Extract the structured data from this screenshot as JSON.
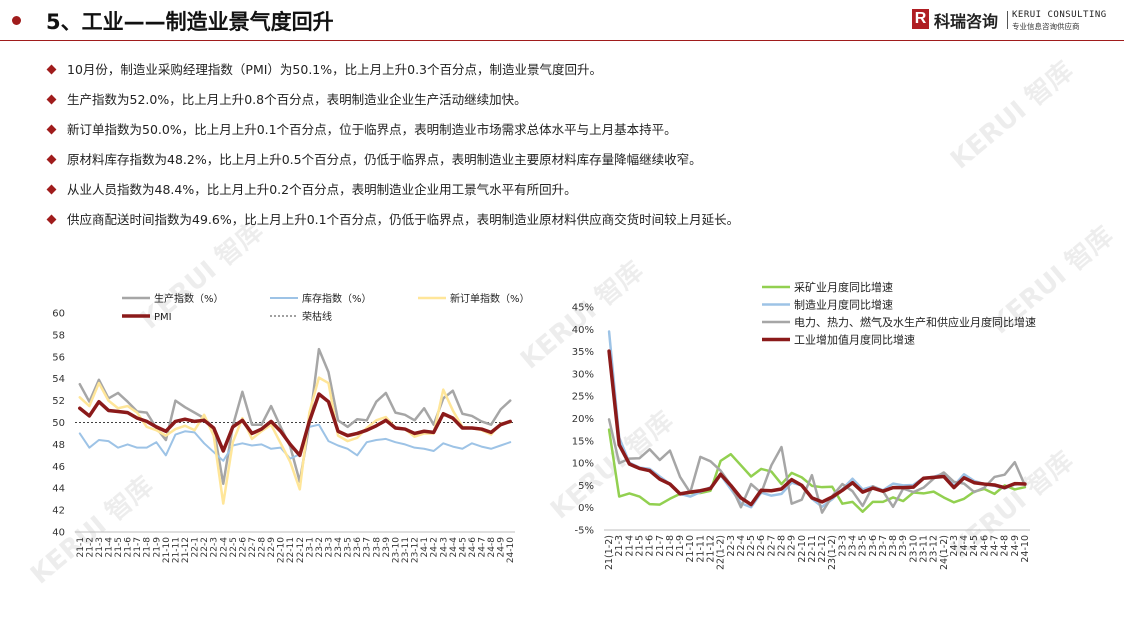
{
  "header": {
    "title": "5、工业——制造业景气度回升",
    "logo": "科瑞咨询",
    "logo_en": "KERUI CONSULTING",
    "logo_sub": "专业信息咨询供应商"
  },
  "watermark": "KERUI 智库",
  "bullets": [
    "10月份，制造业采购经理指数（PMI）为50.1%，比上月上升0.3个百分点，制造业景气度回升。",
    "生产指数为52.0%，比上月上升0.8个百分点，表明制造业企业生产活动继续加快。",
    "新订单指数为50.0%，比上月上升0.1个百分点，位于临界点，表明制造业市场需求总体水平与上月基本持平。",
    "原材料库存指数为48.2%，比上月上升0.5个百分点，仍低于临界点，表明制造业主要原材料库存量降幅继续收窄。",
    "从业人员指数为48.4%，比上月上升0.2个百分点，表明制造业企业用工景气水平有所回升。",
    "供应商配送时间指数为49.6%，比上月上升0.1个百分点，仍低于临界点，表明制造业原材料供应商交货时间较上月延长。"
  ],
  "chart_data": [
    {
      "type": "line",
      "categories": [
        "21-1",
        "21-2",
        "21-3",
        "21-4",
        "21-5",
        "21-6",
        "21-7",
        "21-8",
        "21-9",
        "21-10",
        "21-11",
        "21-12",
        "22-1",
        "22-2",
        "22-3",
        "22-4",
        "22-5",
        "22-6",
        "22-7",
        "22-8",
        "22-9",
        "22-10",
        "22-11",
        "22-12",
        "23-1",
        "23-2",
        "23-3",
        "23-4",
        "23-5",
        "23-6",
        "23-7",
        "23-8",
        "23-9",
        "23-10",
        "23-11",
        "23-12",
        "24-1",
        "24-2",
        "24-3",
        "24-4",
        "24-5",
        "24-6",
        "24-7",
        "24-8",
        "24-9",
        "24-10"
      ],
      "series": [
        {
          "name": "生产指数（%）",
          "color": "#a6a6a6",
          "line_width": 2.5,
          "values": [
            53.5,
            51.9,
            53.9,
            52.2,
            52.7,
            51.9,
            51.0,
            50.9,
            49.5,
            48.4,
            52.0,
            51.4,
            50.9,
            50.4,
            49.5,
            44.4,
            49.7,
            52.8,
            49.8,
            49.8,
            51.5,
            49.6,
            47.8,
            44.6,
            49.8,
            56.7,
            54.6,
            50.2,
            49.6,
            50.3,
            50.2,
            51.9,
            52.7,
            50.9,
            50.7,
            50.2,
            51.3,
            49.8,
            52.2,
            52.9,
            50.8,
            50.6,
            50.1,
            49.8,
            51.2,
            52.0
          ]
        },
        {
          "name": "库存指数（%）",
          "color": "#9dc3e6",
          "line_width": 2,
          "values": [
            49.0,
            47.7,
            48.4,
            48.3,
            47.7,
            48.0,
            47.7,
            47.7,
            48.2,
            47.0,
            48.9,
            49.2,
            49.1,
            48.1,
            47.3,
            46.5,
            47.9,
            48.1,
            47.9,
            48.0,
            47.6,
            47.7,
            46.7,
            47.1,
            49.6,
            49.8,
            48.3,
            47.9,
            47.6,
            47.0,
            48.2,
            48.4,
            48.5,
            48.2,
            48.0,
            47.7,
            47.6,
            47.4,
            48.1,
            47.8,
            47.6,
            48.1,
            47.8,
            47.6,
            47.9,
            48.2
          ]
        },
        {
          "name": "新订单指数（%）",
          "color": "#ffe699",
          "line_width": 2.5,
          "values": [
            52.3,
            51.5,
            53.6,
            52.0,
            51.3,
            51.5,
            50.9,
            49.6,
            49.3,
            48.8,
            49.4,
            49.7,
            49.3,
            50.7,
            48.8,
            42.6,
            48.2,
            50.4,
            48.5,
            49.2,
            49.8,
            48.1,
            46.4,
            43.9,
            50.9,
            54.1,
            53.6,
            48.8,
            48.3,
            48.6,
            49.5,
            50.2,
            50.5,
            49.5,
            49.4,
            48.7,
            49.0,
            49.0,
            53.0,
            51.1,
            49.6,
            49.5,
            49.3,
            48.9,
            49.9,
            50.0
          ]
        },
        {
          "name": "PMI",
          "color": "#8b1a1a",
          "line_width": 3.5,
          "values": [
            51.3,
            50.6,
            51.9,
            51.1,
            51.0,
            50.9,
            50.4,
            50.1,
            49.6,
            49.2,
            50.1,
            50.3,
            50.1,
            50.2,
            49.5,
            47.4,
            49.6,
            50.2,
            49.0,
            49.4,
            50.1,
            49.2,
            48.0,
            47.0,
            50.1,
            52.6,
            51.9,
            49.2,
            48.8,
            49.0,
            49.3,
            49.7,
            50.2,
            49.5,
            49.4,
            49.0,
            49.2,
            49.1,
            50.8,
            50.4,
            49.5,
            49.5,
            49.4,
            49.1,
            49.8,
            50.1
          ]
        }
      ],
      "reference_lines": [
        {
          "name": "荣枯线",
          "value": 50,
          "color": "#404040",
          "dashed": true
        }
      ],
      "ylim": [
        40,
        60
      ],
      "yticks": [
        40,
        42,
        44,
        46,
        48,
        50,
        52,
        54,
        56,
        58,
        60
      ],
      "grid": false,
      "legend": "top"
    },
    {
      "type": "line",
      "categories": [
        "21(1-2)",
        "21-3",
        "21-4",
        "21-5",
        "21-6",
        "21-7",
        "21-8",
        "21-9",
        "21-10",
        "21-11",
        "21-12",
        "22(1-2)",
        "22-3",
        "22-4",
        "22-5",
        "22-6",
        "22-7",
        "22-8",
        "22-9",
        "22-10",
        "22-11",
        "22-12",
        "23(1-2)",
        "23-3",
        "23-4",
        "23-5",
        "23-6",
        "23-7",
        "23-8",
        "23-9",
        "23-10",
        "23-11",
        "23-12",
        "24(1-2)",
        "24-3",
        "24-4",
        "24-5",
        "24-6",
        "24-7",
        "24-8",
        "24-9",
        "24-10"
      ],
      "series": [
        {
          "name": "采矿业月度同比增速",
          "color": "#92d050",
          "line_width": 2.5,
          "values": [
            17.5,
            2.5,
            3.2,
            2.5,
            0.8,
            0.7,
            2.0,
            3.1,
            3.3,
            3.3,
            3.8,
            10.5,
            12.0,
            9.5,
            7.0,
            8.7,
            8.1,
            5.3,
            7.8,
            6.8,
            4.9,
            4.6,
            4.7,
            0.9,
            1.3,
            -0.9,
            1.3,
            1.3,
            2.3,
            1.5,
            3.4,
            3.2,
            3.6,
            2.3,
            1.2,
            2.0,
            3.6,
            4.2,
            3.1,
            5.0,
            4.1,
            4.6
          ]
        },
        {
          "name": "制造业月度同比增速",
          "color": "#9dc3e6",
          "line_width": 2.5,
          "values": [
            39.5,
            15.7,
            10.1,
            9.0,
            8.7,
            7.0,
            5.3,
            3.1,
            2.5,
            3.5,
            4.6,
            7.3,
            4.2,
            1.0,
            0.1,
            3.4,
            2.7,
            3.1,
            5.6,
            5.0,
            2.0,
            0.2,
            1.9,
            4.2,
            6.5,
            4.1,
            4.8,
            3.9,
            5.4,
            5.0,
            5.1,
            6.7,
            6.9,
            7.7,
            4.9,
            7.5,
            6.0,
            5.3,
            4.9,
            4.3,
            5.2,
            5.4
          ]
        },
        {
          "name": "电力、热力、燃气及水生产和供应业月度同比增速",
          "color": "#a6a6a6",
          "line_width": 2.5,
          "values": [
            19.8,
            10.0,
            11.0,
            11.1,
            13.1,
            10.7,
            12.8,
            6.9,
            3.4,
            11.4,
            10.4,
            8.3,
            5.1,
            0.1,
            5.3,
            3.3,
            9.5,
            13.6,
            0.9,
            1.8,
            7.3,
            -1.1,
            2.6,
            5.3,
            3.7,
            0.4,
            4.8,
            3.7,
            0.2,
            4.3,
            3.5,
            4.5,
            6.5,
            7.9,
            5.8,
            5.4,
            3.5,
            4.5,
            6.9,
            7.4,
            10.2,
            5.0
          ]
        },
        {
          "name": "工业增加值月度同比增速",
          "color": "#8b1a1a",
          "line_width": 3.5,
          "values": [
            35.1,
            14.1,
            9.8,
            8.8,
            8.3,
            6.4,
            5.3,
            3.1,
            3.5,
            3.8,
            4.3,
            7.5,
            5.0,
            2.2,
            0.7,
            3.9,
            3.8,
            4.2,
            6.3,
            5.0,
            2.2,
            1.3,
            2.4,
            3.9,
            5.6,
            3.5,
            4.4,
            3.7,
            4.5,
            4.5,
            4.6,
            6.6,
            6.8,
            7.0,
            4.5,
            6.7,
            5.6,
            5.3,
            5.1,
            4.5,
            5.4,
            5.3
          ]
        }
      ],
      "ylim": [
        -5,
        45
      ],
      "yticks": [
        {
          "value": -5,
          "label": "-5%"
        },
        {
          "value": 0,
          "label": "0%"
        },
        {
          "value": 5,
          "label": "5%"
        },
        {
          "value": 10,
          "label": "10%"
        },
        {
          "value": 15,
          "label": "15%"
        },
        {
          "value": 20,
          "label": "20%"
        },
        {
          "value": 25,
          "label": "25%"
        },
        {
          "value": 30,
          "label": "30%"
        },
        {
          "value": 35,
          "label": "35%"
        },
        {
          "value": 40,
          "label": "40%"
        },
        {
          "value": 45,
          "label": "45%"
        }
      ],
      "grid": false,
      "legend": "top-right"
    }
  ]
}
